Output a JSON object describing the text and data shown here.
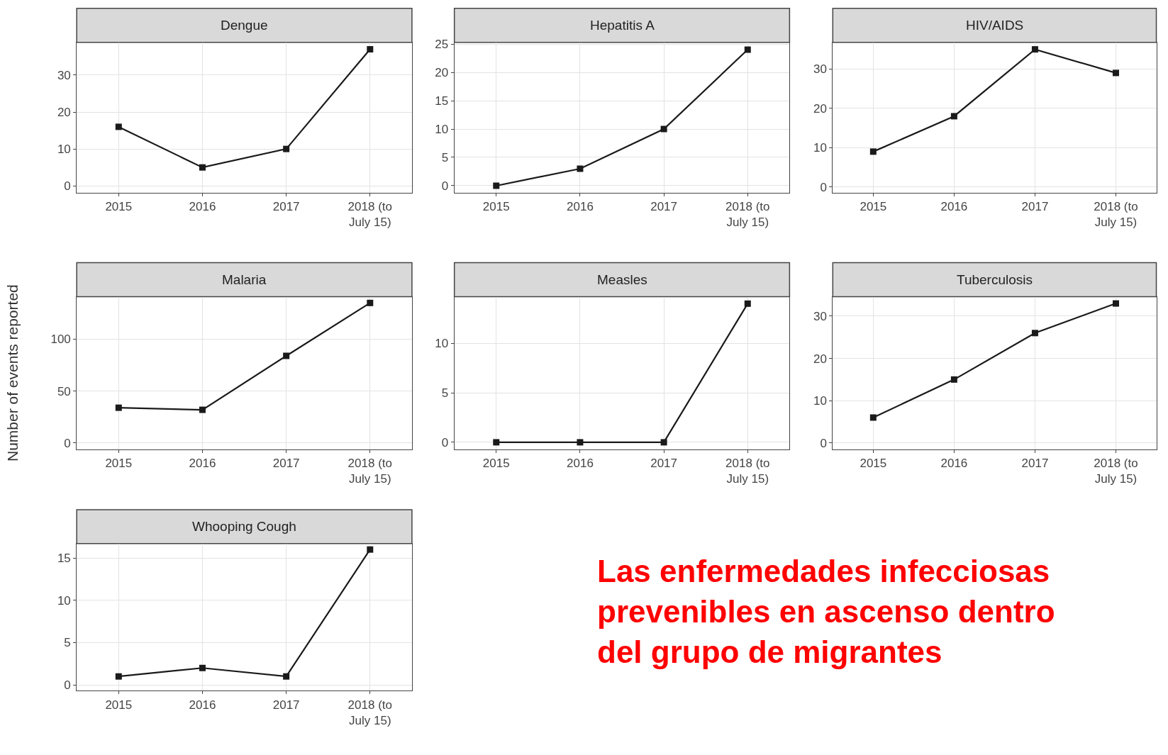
{
  "chart_data": [
    {
      "type": "line",
      "title": "Dengue",
      "categories": [
        "2015",
        "2016",
        "2017",
        "2018 (to July 15)"
      ],
      "values": [
        16,
        5,
        10,
        37
      ],
      "color": "#1a1a1a",
      "ylim": [
        -1.8,
        38.9
      ],
      "yticks": [
        0,
        10,
        20,
        30
      ],
      "grid": true,
      "marker": "square",
      "line_style": "solid"
    },
    {
      "type": "line",
      "title": "Hepatitis A",
      "categories": [
        "2015",
        "2016",
        "2017",
        "2018 (to July 15)"
      ],
      "values": [
        0,
        3,
        10,
        24
      ],
      "color": "#1a1a1a",
      "ylim": [
        -1.2,
        25.3
      ],
      "yticks": [
        0,
        5,
        10,
        15,
        20,
        25
      ],
      "grid": true,
      "marker": "square",
      "line_style": "solid"
    },
    {
      "type": "line",
      "title": "HIV/AIDS",
      "categories": [
        "2015",
        "2016",
        "2017",
        "2018 (to July 15)"
      ],
      "values": [
        9,
        18,
        35,
        29
      ],
      "color": "#1a1a1a",
      "ylim": [
        -1.4,
        36.8
      ],
      "yticks": [
        0,
        10,
        20,
        30
      ],
      "grid": true,
      "marker": "square",
      "line_style": "solid"
    },
    {
      "type": "line",
      "title": "Malaria",
      "ylabel": "Number of events reported",
      "categories": [
        "2015",
        "2016",
        "2017",
        "2018 (to July 15)"
      ],
      "values": [
        34,
        32,
        84,
        135
      ],
      "color": "#1a1a1a",
      "ylim": [
        -6,
        141
      ],
      "yticks": [
        0,
        50,
        100
      ],
      "grid": true,
      "marker": "square",
      "line_style": "solid"
    },
    {
      "type": "line",
      "title": "Measles",
      "categories": [
        "2015",
        "2016",
        "2017",
        "2018 (to July 15)"
      ],
      "values": [
        0,
        0,
        0,
        14
      ],
      "color": "#1a1a1a",
      "ylim": [
        -0.7,
        14.7
      ],
      "yticks": [
        0,
        5,
        10
      ],
      "grid": true,
      "marker": "square",
      "line_style": "solid"
    },
    {
      "type": "line",
      "title": "Tuberculosis",
      "categories": [
        "2015",
        "2016",
        "2017",
        "2018 (to July 15)"
      ],
      "values": [
        6,
        15,
        26,
        33
      ],
      "color": "#1a1a1a",
      "ylim": [
        -1.5,
        34.6
      ],
      "yticks": [
        0,
        10,
        20,
        30
      ],
      "grid": true,
      "marker": "square",
      "line_style": "solid"
    },
    {
      "type": "line",
      "title": "Whooping Cough",
      "categories": [
        "2015",
        "2016",
        "2017",
        "2018 (to July 15)"
      ],
      "values": [
        1,
        2,
        1,
        16
      ],
      "color": "#1a1a1a",
      "ylim": [
        -0.7,
        16.7
      ],
      "yticks": [
        0,
        5,
        10,
        15
      ],
      "grid": true,
      "marker": "square",
      "line_style": "solid",
      "annotations": [
        "Las enfermedades infecciosas prevenibles en ascenso dentro del grupo de migrantes"
      ]
    }
  ]
}
